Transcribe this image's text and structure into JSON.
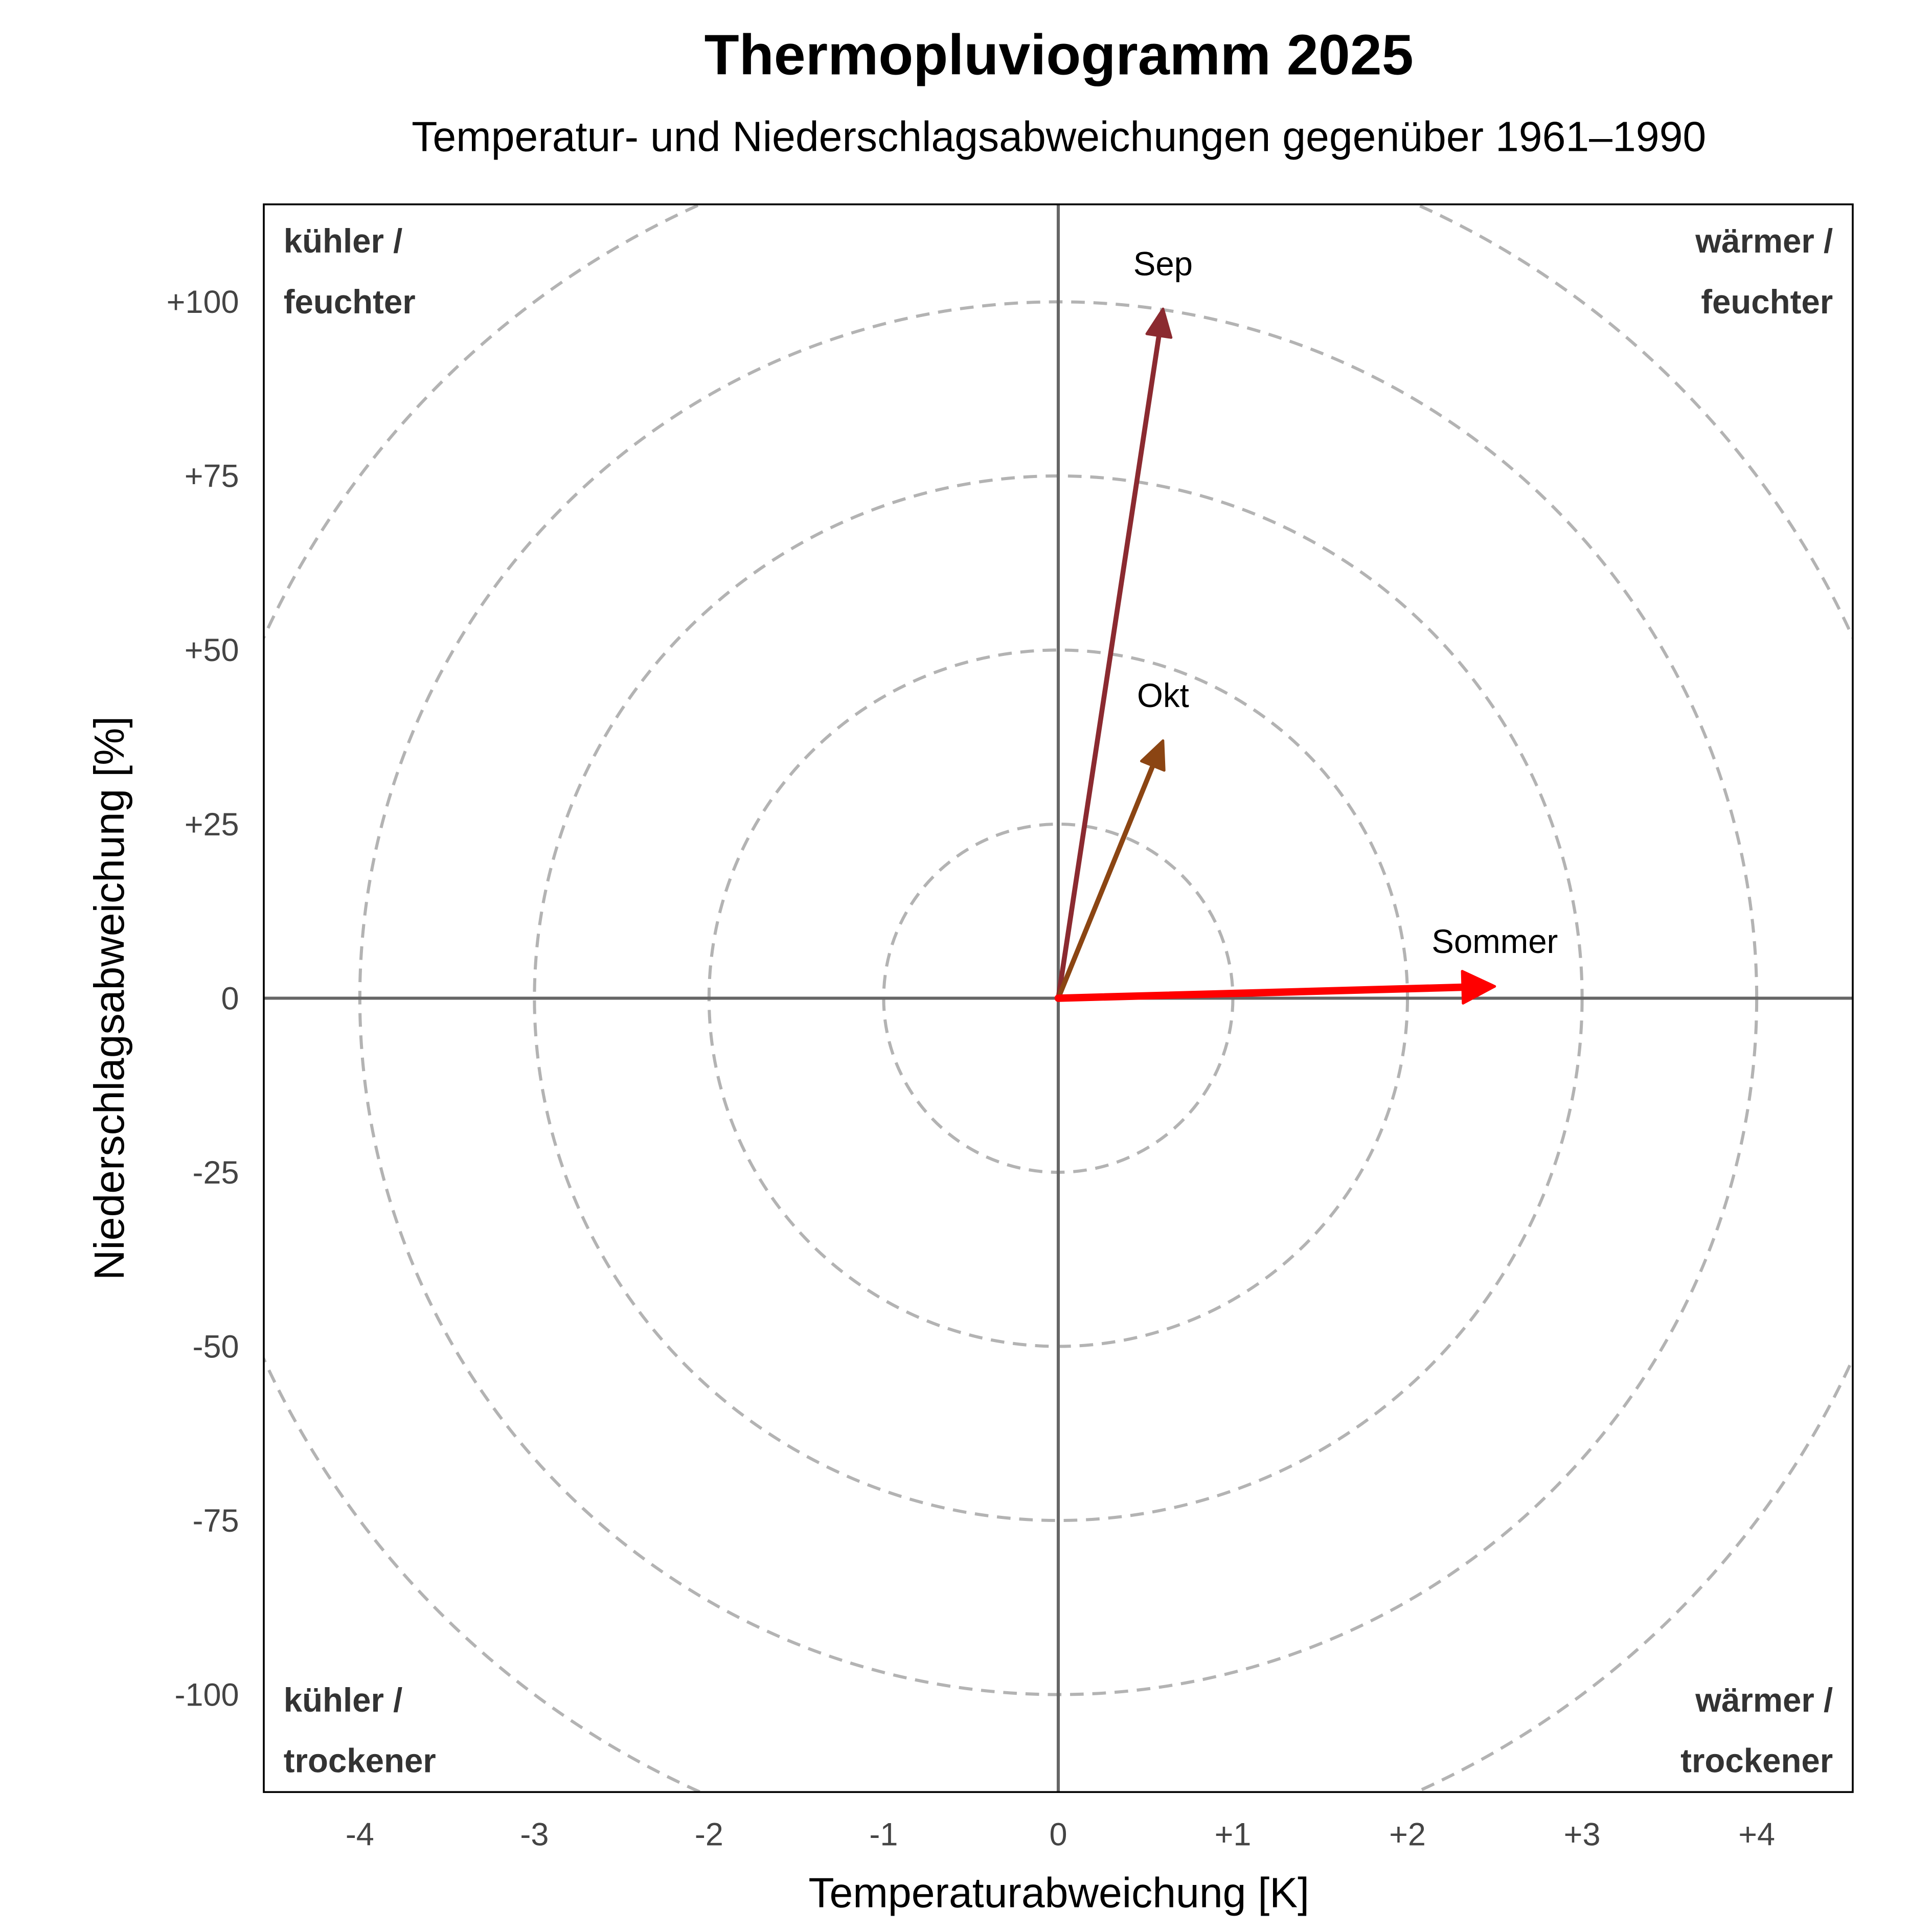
{
  "chart_data": {
    "type": "vector",
    "title": "Thermopluviogramm 2025",
    "subtitle": "Temperatur- und Niederschlagsabweichungen gegenüber 1961–1990",
    "xlabel": "Temperaturabweichung [K]",
    "ylabel": "Niederschlagsabweichung [%]",
    "xlim": [
      -4.55,
      4.55
    ],
    "ylim": [
      -114,
      114
    ],
    "xticks": [
      -4,
      -3,
      -2,
      -1,
      0,
      1,
      2,
      3,
      4
    ],
    "xtick_labels": [
      "-4",
      "-3",
      "-2",
      "-1",
      "0",
      "+1",
      "+2",
      "+3",
      "+4"
    ],
    "yticks": [
      -100,
      -75,
      -50,
      -25,
      0,
      25,
      50,
      75,
      100
    ],
    "ytick_labels": [
      "-100",
      "-75",
      "-50",
      "-25",
      "0",
      "+25",
      "+50",
      "+75",
      "+100"
    ],
    "reference_ellipses": {
      "x_radii_K": [
        1,
        2,
        3,
        4,
        5
      ],
      "y_radii_pct": [
        25,
        50,
        75,
        100,
        125
      ],
      "style": "dashed",
      "color": "#b3b3b3"
    },
    "axis_line_color": "#666666",
    "quadrant_labels": {
      "top_left": [
        "kühler /",
        "feuchter"
      ],
      "top_right": [
        "wärmer /",
        "feuchter"
      ],
      "bottom_left": [
        "kühler /",
        "trockener"
      ],
      "bottom_right": [
        "wärmer /",
        "trockener"
      ]
    },
    "series": [
      {
        "name": "Sep",
        "x": 0.6,
        "y": 99,
        "color": "#8b2a30"
      },
      {
        "name": "Okt",
        "x": 0.6,
        "y": 37,
        "color": "#8b4513"
      },
      {
        "name": "Sommer",
        "x": 2.5,
        "y": 1.7,
        "color": "#ff0000"
      }
    ]
  }
}
